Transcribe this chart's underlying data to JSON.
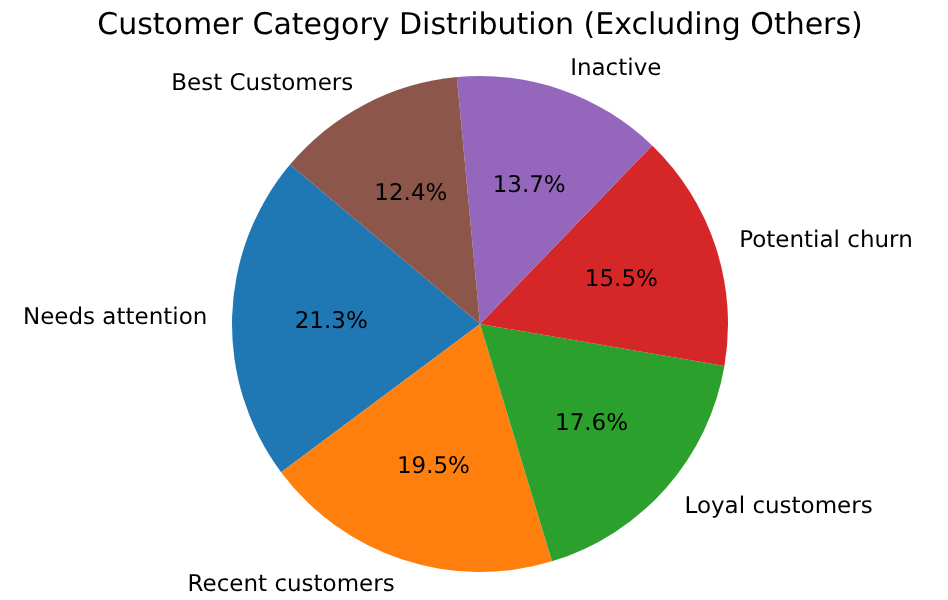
{
  "chart_data": {
    "type": "pie",
    "title": "Customer Category Distribution (Excluding Others)",
    "categories": [
      "Needs attention",
      "Recent customers",
      "Loyal customers",
      "Potential churn",
      "Inactive",
      "Best Customers"
    ],
    "values": [
      21.3,
      19.5,
      17.6,
      15.5,
      13.7,
      12.4
    ],
    "colors": [
      "#1f77b4",
      "#ff7f0e",
      "#2ca02c",
      "#d62728",
      "#9467bd",
      "#8c564b"
    ],
    "value_labels": [
      "21.3%",
      "19.5%",
      "17.6%",
      "15.5%",
      "13.7%",
      "12.4%"
    ]
  }
}
